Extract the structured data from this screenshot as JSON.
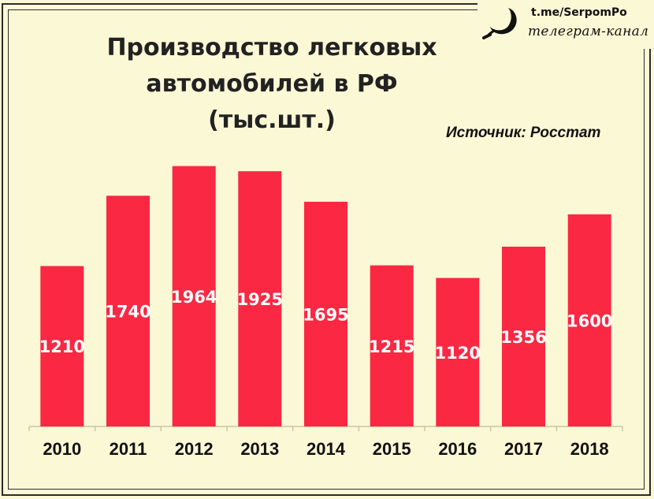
{
  "header": {
    "title_line1": "Производство легковых",
    "title_line2": "автомобилей в РФ (тыс.шт.)",
    "source": "Источник: Росстат"
  },
  "branding": {
    "handle": "t.me/SerpomPo",
    "subtitle": "телеграм-канал",
    "icon": "sickle-icon"
  },
  "colors": {
    "bar": "#fa2843",
    "background": "#fbf8d6",
    "text": "#111111"
  },
  "chart_data": {
    "type": "bar",
    "title": "Производство легковых автомобилей в РФ (тыс.шт.)",
    "categories": [
      "2010",
      "2011",
      "2012",
      "2013",
      "2014",
      "2015",
      "2016",
      "2017",
      "2018"
    ],
    "values": [
      1210,
      1740,
      1964,
      1925,
      1695,
      1215,
      1120,
      1356,
      1600
    ],
    "value_labels": [
      "1210",
      "1740",
      "1964",
      "1925",
      "1695",
      "1215",
      "1120",
      "1356",
      "1600"
    ],
    "ylim": [
      0,
      2000
    ],
    "grid": false,
    "legend": "none"
  }
}
